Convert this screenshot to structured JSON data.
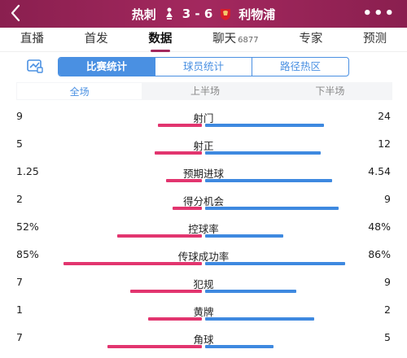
{
  "header": {
    "back_icon": "back-arrow-icon",
    "home_team": "热刺",
    "away_team": "利物浦",
    "score": "3 - 6",
    "more_icon": "more-dots-icon"
  },
  "tabs": [
    {
      "label": "直播"
    },
    {
      "label": "首发"
    },
    {
      "label": "数据",
      "active": true
    },
    {
      "label": "聊天",
      "badge": "6877"
    },
    {
      "label": "专家"
    },
    {
      "label": "预测"
    }
  ],
  "segments": {
    "icon": "chart-icon",
    "items": [
      "比赛统计",
      "球员统计",
      "路径热区"
    ],
    "active_index": 0
  },
  "periods": {
    "items": [
      "全场",
      "上半场",
      "下半场"
    ],
    "active_index": 0
  },
  "colors": {
    "home": "#e2356f",
    "away": "#3e89e0",
    "accent": "#4a90e2",
    "header": "#a3285e"
  },
  "stats": [
    {
      "name": "射门",
      "home": "9",
      "away": "24",
      "home_share": 0.27,
      "away_share": 0.73
    },
    {
      "name": "射正",
      "home": "5",
      "away": "12",
      "home_share": 0.29,
      "away_share": 0.71
    },
    {
      "name": "预期进球",
      "home": "1.25",
      "away": "4.54",
      "home_share": 0.22,
      "away_share": 0.78
    },
    {
      "name": "得分机会",
      "home": "2",
      "away": "9",
      "home_share": 0.18,
      "away_share": 0.82
    },
    {
      "name": "控球率",
      "home": "52%",
      "away": "48%",
      "home_share": 0.52,
      "away_share": 0.48
    },
    {
      "name": "传球成功率",
      "home": "85%",
      "away": "86%",
      "home_share": 0.85,
      "away_share": 0.86
    },
    {
      "name": "犯规",
      "home": "7",
      "away": "9",
      "home_share": 0.44,
      "away_share": 0.56
    },
    {
      "name": "黄牌",
      "home": "1",
      "away": "2",
      "home_share": 0.33,
      "away_share": 0.67
    },
    {
      "name": "角球",
      "home": "7",
      "away": "5",
      "home_share": 0.58,
      "away_share": 0.42
    }
  ]
}
